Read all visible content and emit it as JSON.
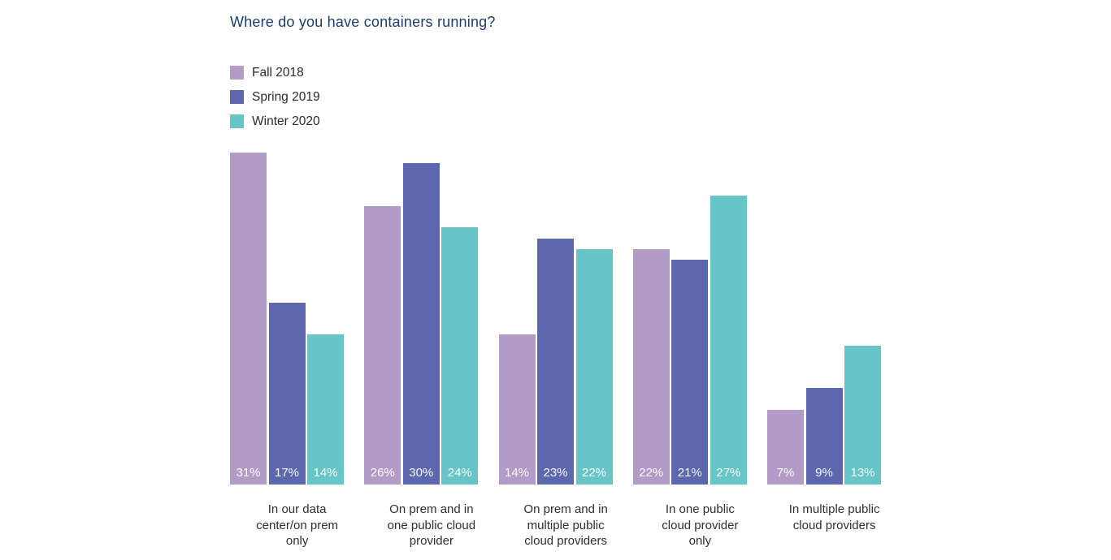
{
  "chart_data": {
    "type": "bar",
    "title": "Where do you have containers running?",
    "title_color": "#1d3e6d",
    "categories": [
      "In our data center/on prem only",
      "On prem and in one public cloud provider",
      "On prem and in multiple public cloud providers",
      "In one public cloud provider only",
      "In multiple public cloud providers"
    ],
    "category_lines": [
      [
        "In our data",
        "center/on prem",
        "only"
      ],
      [
        "On prem and in",
        "one public cloud",
        "provider"
      ],
      [
        "On prem and in",
        "multiple public",
        "cloud providers"
      ],
      [
        "In one public",
        "cloud provider",
        "only"
      ],
      [
        "In multiple public",
        "cloud providers"
      ]
    ],
    "series": [
      {
        "name": "Fall 2018",
        "color": "#b39bc8",
        "values": [
          31,
          26,
          14,
          22,
          7
        ]
      },
      {
        "name": "Spring 2019",
        "color": "#5c67ae",
        "values": [
          17,
          30,
          23,
          21,
          9
        ]
      },
      {
        "name": "Winter 2020",
        "color": "#67c5c7",
        "values": [
          14,
          24,
          22,
          27,
          13
        ]
      }
    ],
    "value_suffix": "%",
    "ylim": [
      0,
      31
    ],
    "grid": false,
    "axes_visible": false,
    "legend_position": "top-left",
    "data_label_position": "inside-bottom",
    "value_label_color": "#ffffff",
    "category_label_color": "#2f2f2f"
  }
}
